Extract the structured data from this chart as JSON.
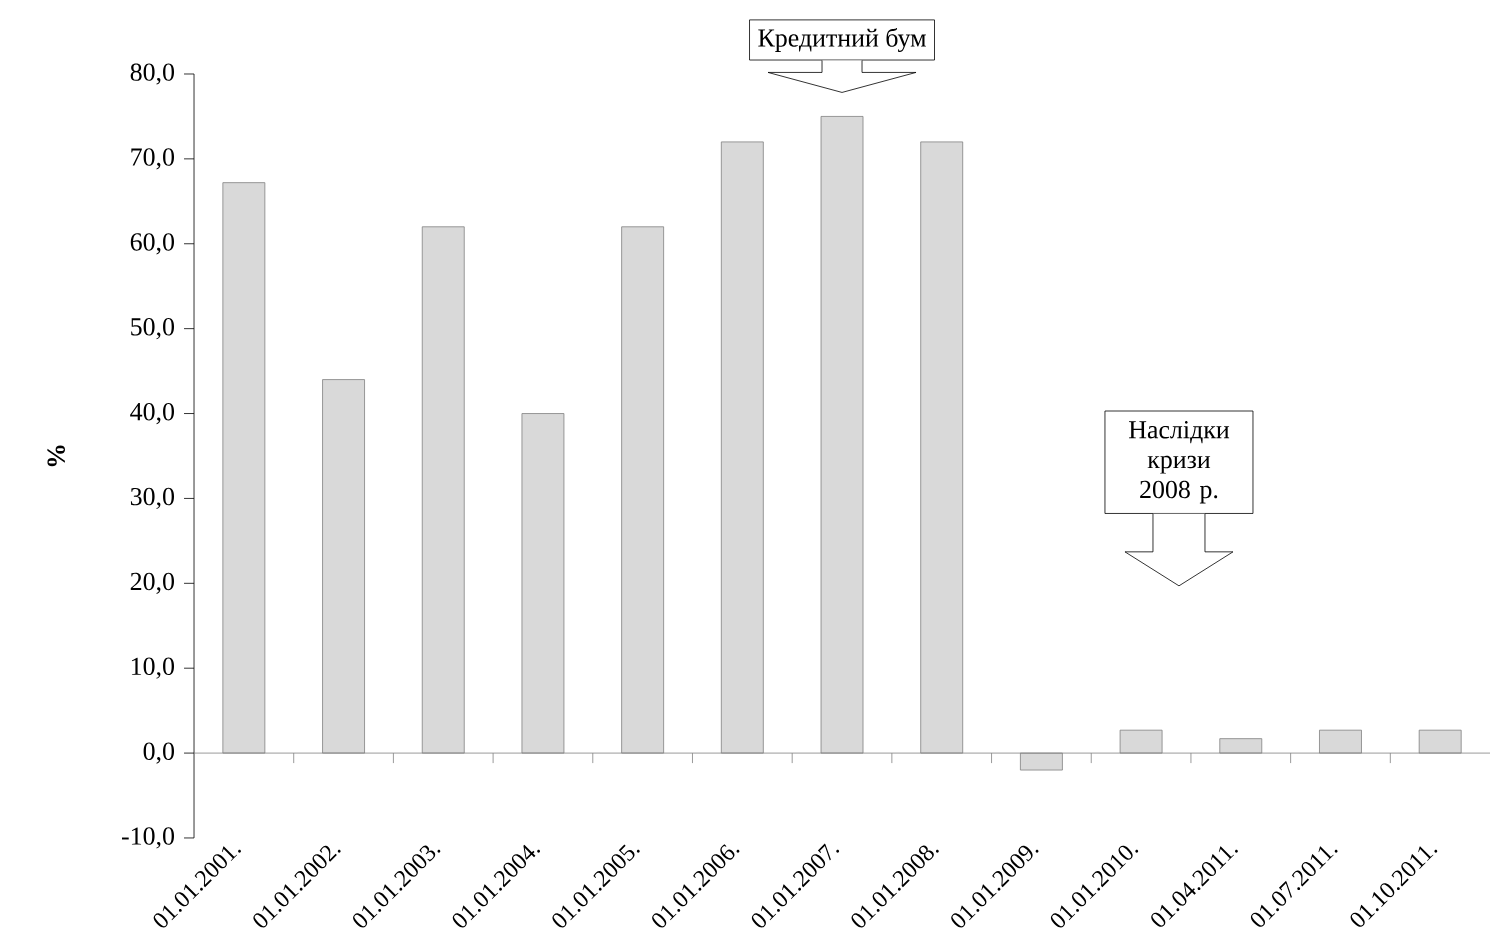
{
  "chart_data": {
    "type": "bar",
    "ylabel": "%",
    "categories": [
      "01.01.2001.",
      "01.01.2002.",
      "01.01.2003.",
      "01.01.2004.",
      "01.01.2005.",
      "01.01.2006.",
      "01.01.2007.",
      "01.01.2008.",
      "01.01.2009.",
      "01.01.2010.",
      "01.04.2011.",
      "01.07.2011.",
      "01.10.2011."
    ],
    "values": [
      67.2,
      44.0,
      62.0,
      40.0,
      62.0,
      72.0,
      75.0,
      72.0,
      -2.0,
      2.7,
      1.7,
      2.7,
      2.7
    ],
    "color": "#d9d9d9",
    "ylim": [
      -10,
      80
    ],
    "yticks": [
      {
        "value": -10,
        "label": "-10,0"
      },
      {
        "value": 0,
        "label": "0,0"
      },
      {
        "value": 10,
        "label": "10,0"
      },
      {
        "value": 20,
        "label": "20,0"
      },
      {
        "value": 30,
        "label": "30,0"
      },
      {
        "value": 40,
        "label": "40,0"
      },
      {
        "value": 50,
        "label": "50,0"
      },
      {
        "value": 60,
        "label": "60,0"
      },
      {
        "value": 70,
        "label": "70,0"
      },
      {
        "value": 80,
        "label": "80,0"
      }
    ],
    "annotations": [
      {
        "text": "Кредитний бум",
        "x": "01.01.2007.",
        "y": 75
      },
      "Наслідки кризи 2008 р."
    ]
  }
}
